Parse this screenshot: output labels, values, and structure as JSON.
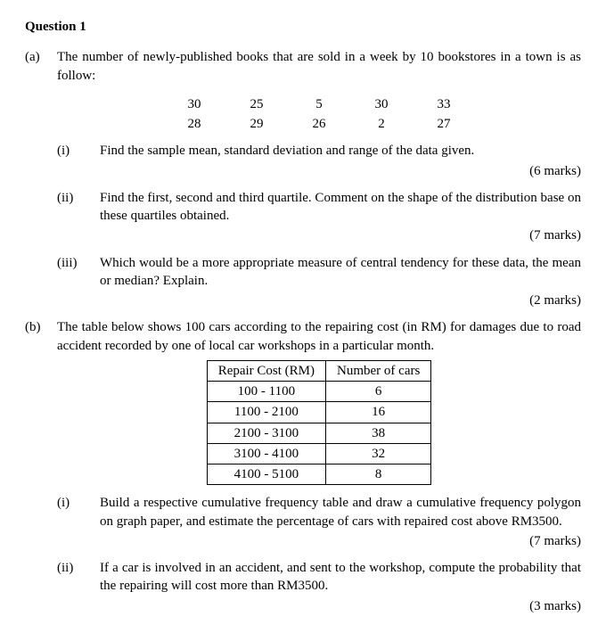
{
  "title": "Question 1",
  "a": {
    "letter": "(a)",
    "intro": "The number of newly-published books that are sold in a week by 10 bookstores in a town is as follow:",
    "data": {
      "row1": [
        "30",
        "25",
        "5",
        "30",
        "33"
      ],
      "row2": [
        "28",
        "29",
        "26",
        "2",
        "27"
      ]
    },
    "i": {
      "label": "(i)",
      "text": "Find the sample mean, standard deviation and range of the data given.",
      "marks": "(6 marks)"
    },
    "ii": {
      "label": "(ii)",
      "text": "Find the first, second and third quartile. Comment on the shape of the distribution base on these quartiles obtained.",
      "marks": "(7 marks)"
    },
    "iii": {
      "label": "(iii)",
      "text": "Which would be a more appropriate measure of central tendency for these data, the mean or median? Explain.",
      "marks": "(2 marks)"
    }
  },
  "b": {
    "letter": "(b)",
    "intro": "The table below shows 100 cars according to the repairing cost (in RM) for damages due to road accident recorded by one of local car workshops in a particular month.",
    "table": {
      "h1": "Repair Cost (RM)",
      "h2": "Number of cars",
      "rows": [
        {
          "c": "100 - 1100",
          "n": "6"
        },
        {
          "c": "1100 - 2100",
          "n": "16"
        },
        {
          "c": "2100 - 3100",
          "n": "38"
        },
        {
          "c": "3100 - 4100",
          "n": "32"
        },
        {
          "c": "4100 - 5100",
          "n": "8"
        }
      ]
    },
    "i": {
      "label": "(i)",
      "text": "Build a respective cumulative frequency table and draw a cumulative frequency polygon on graph paper, and estimate the percentage of cars with repaired cost above RM3500.",
      "marks": "(7 marks)"
    },
    "ii": {
      "label": "(ii)",
      "text": "If a car is involved in an accident, and sent to the workshop, compute the probability that the repairing will cost more than RM3500.",
      "marks": "(3 marks)"
    }
  }
}
